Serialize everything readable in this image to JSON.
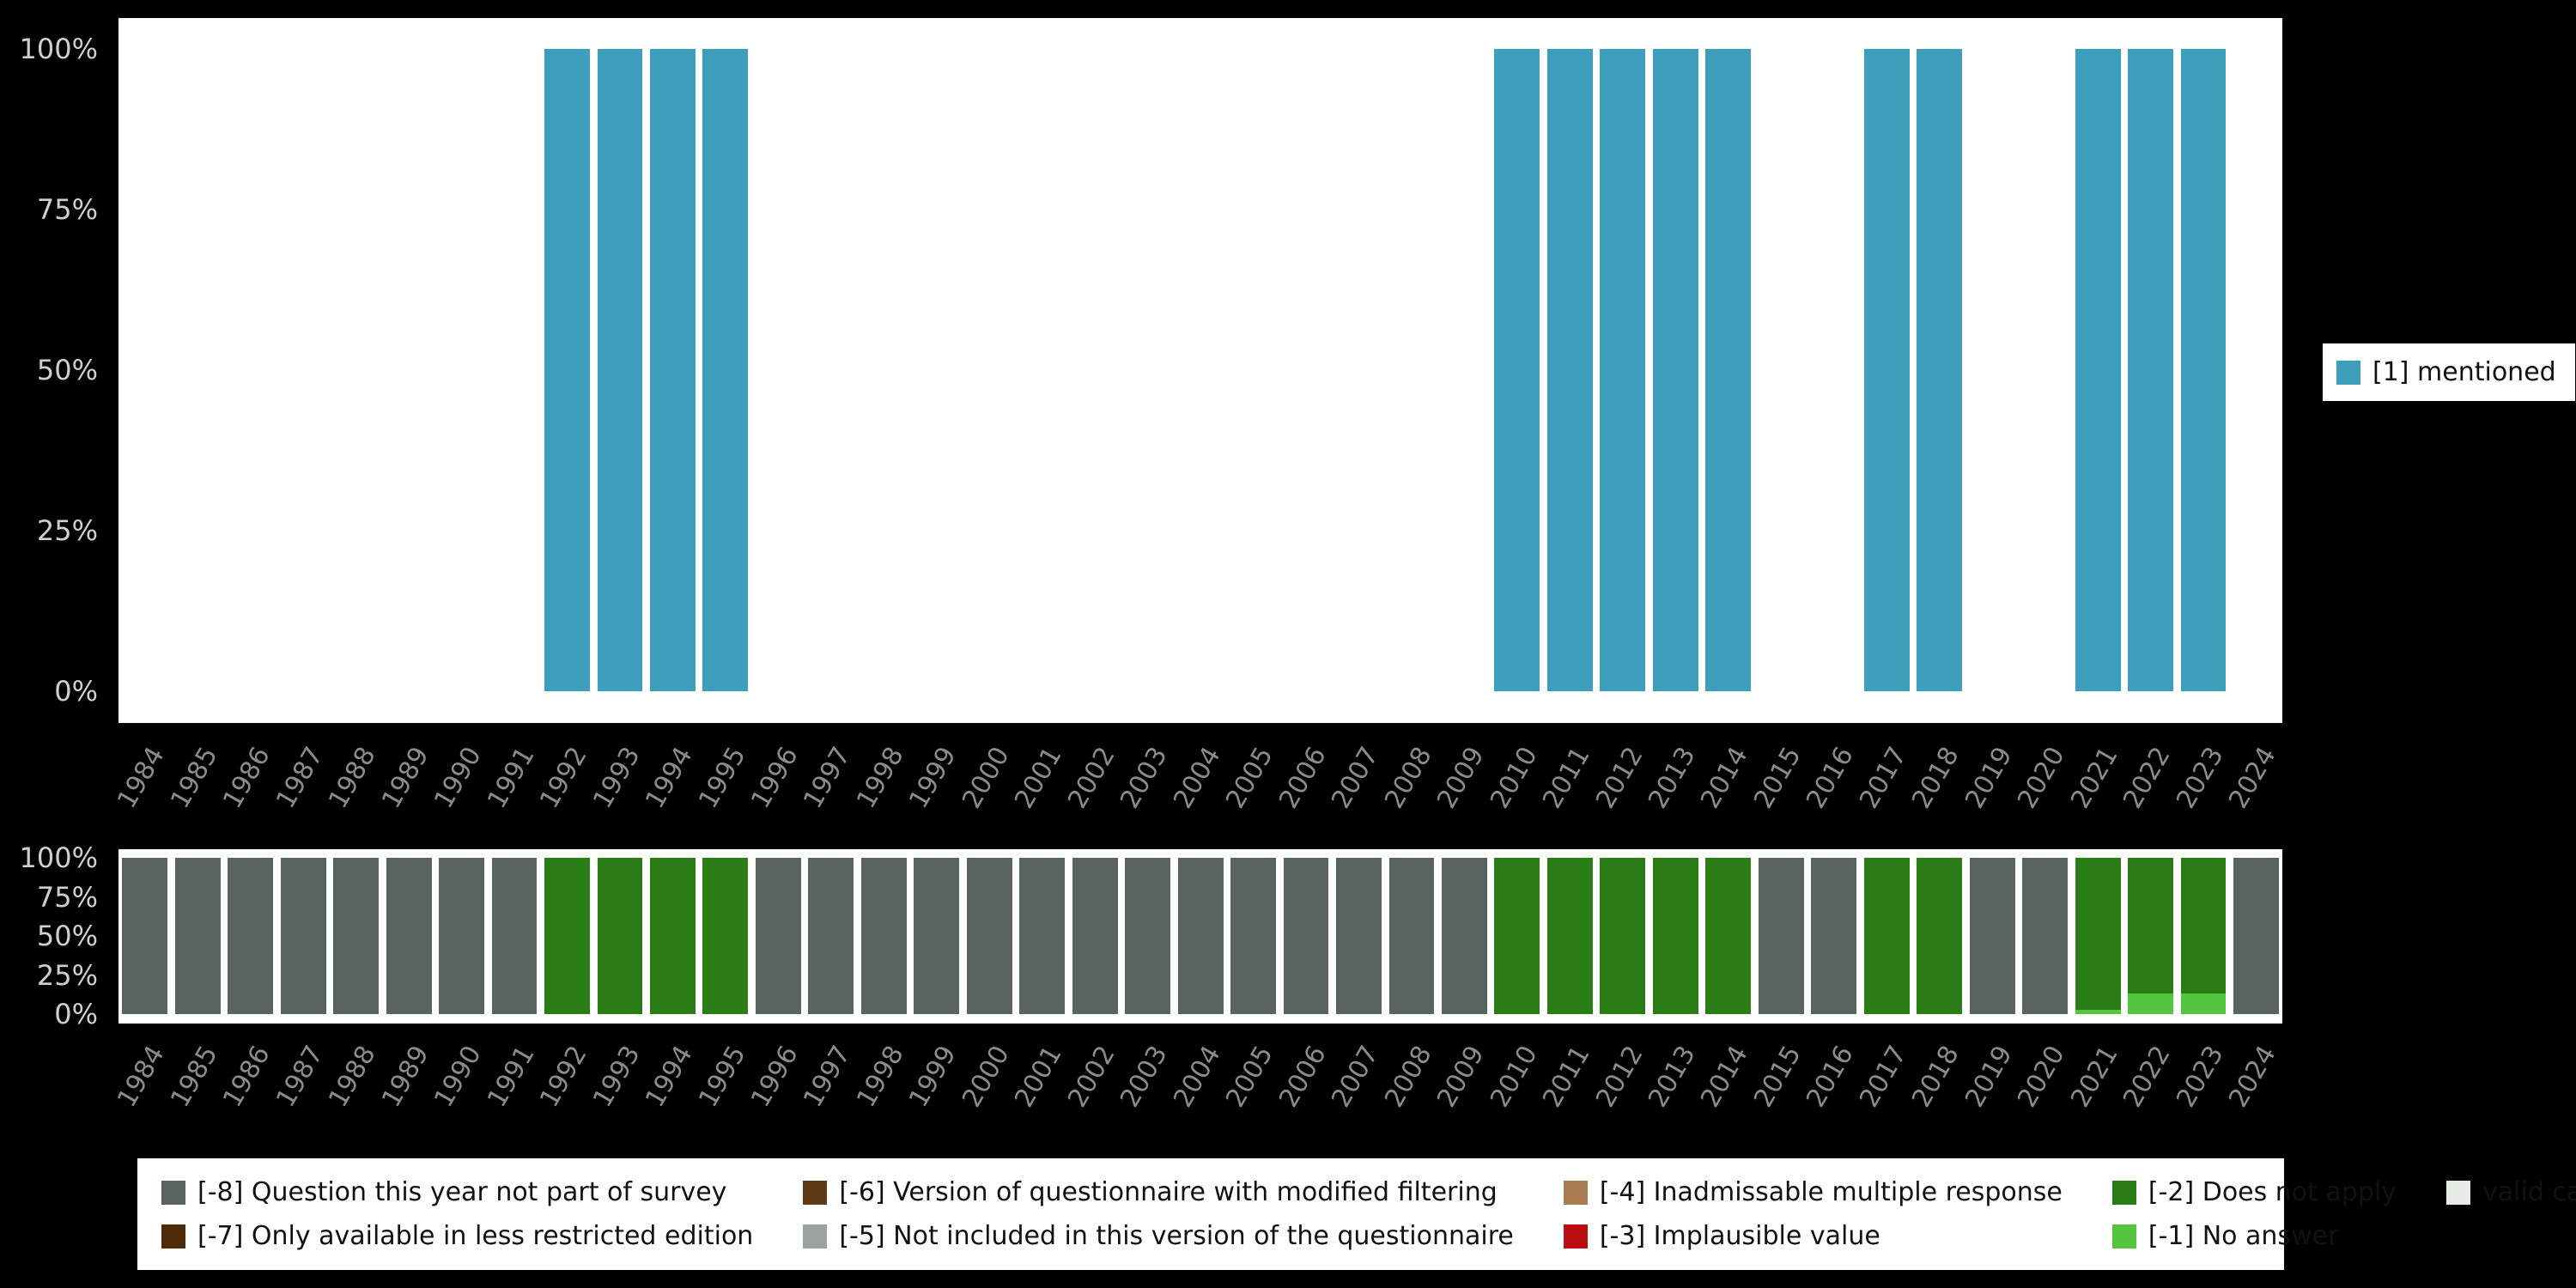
{
  "page": {
    "background": "#000000"
  },
  "legends": {
    "top": {
      "items": [
        {
          "label": "[1] mentioned",
          "color": "#3e9fbc"
        }
      ]
    },
    "bottom": {
      "items": [
        {
          "label": "[-8] Question this year not part of survey",
          "color": "#59635f"
        },
        {
          "label": "[-6] Version of questionnaire with modified filtering",
          "color": "#5d3a14"
        },
        {
          "label": "[-4] Inadmissable multiple response",
          "color": "#a87b50"
        },
        {
          "label": "[-2] Does not apply",
          "color": "#2a7d15"
        },
        {
          "label": "valid cases",
          "color": "#e6e9e6"
        },
        {
          "label": "[-7] Only available in less restricted edition",
          "color": "#4e2a09"
        },
        {
          "label": "[-5] Not included in this version of the questionnaire",
          "color": "#9aa39e"
        },
        {
          "label": "[-3] Implausible value",
          "color": "#bb0e10"
        },
        {
          "label": "[-1] No answer",
          "color": "#54c53e"
        }
      ]
    }
  },
  "chart_data": [
    {
      "type": "bar",
      "title": "",
      "xlabel": "",
      "ylabel": "",
      "ylim": [
        0,
        100
      ],
      "grid": false,
      "legend_position": "right",
      "categories": [
        "1984",
        "1985",
        "1986",
        "1987",
        "1988",
        "1989",
        "1990",
        "1991",
        "1992",
        "1993",
        "1994",
        "1995",
        "1996",
        "1997",
        "1998",
        "1999",
        "2000",
        "2001",
        "2002",
        "2003",
        "2004",
        "2005",
        "2006",
        "2007",
        "2008",
        "2009",
        "2010",
        "2011",
        "2012",
        "2013",
        "2014",
        "2015",
        "2016",
        "2017",
        "2018",
        "2019",
        "2020",
        "2021",
        "2022",
        "2023",
        "2024"
      ],
      "y_ticks": [
        {
          "label": "100%",
          "value": 100
        },
        {
          "label": "75%",
          "value": 75
        },
        {
          "label": "50%",
          "value": 50
        },
        {
          "label": "25%",
          "value": 25
        },
        {
          "label": "0%",
          "value": 0
        }
      ],
      "series": [
        {
          "name": "[1] mentioned",
          "color": "#3e9fbc",
          "values": [
            0,
            0,
            0,
            0,
            0,
            0,
            0,
            0,
            100,
            100,
            100,
            100,
            0,
            0,
            0,
            0,
            0,
            0,
            0,
            0,
            0,
            0,
            0,
            0,
            0,
            0,
            100,
            100,
            100,
            100,
            100,
            0,
            0,
            100,
            100,
            0,
            0,
            100,
            100,
            100,
            0
          ]
        }
      ]
    },
    {
      "type": "stacked-bar",
      "title": "",
      "xlabel": "",
      "ylabel": "",
      "ylim": [
        0,
        100
      ],
      "grid": false,
      "legend_position": "bottom",
      "categories": [
        "1984",
        "1985",
        "1986",
        "1987",
        "1988",
        "1989",
        "1990",
        "1991",
        "1992",
        "1993",
        "1994",
        "1995",
        "1996",
        "1997",
        "1998",
        "1999",
        "2000",
        "2001",
        "2002",
        "2003",
        "2004",
        "2005",
        "2006",
        "2007",
        "2008",
        "2009",
        "2010",
        "2011",
        "2012",
        "2013",
        "2014",
        "2015",
        "2016",
        "2017",
        "2018",
        "2019",
        "2020",
        "2021",
        "2022",
        "2023",
        "2024"
      ],
      "y_ticks": [
        {
          "label": "100%",
          "value": 100
        },
        {
          "label": "75%",
          "value": 75
        },
        {
          "label": "50%",
          "value": 50
        },
        {
          "label": "25%",
          "value": 25
        },
        {
          "label": "0%",
          "value": 0
        }
      ],
      "series": [
        {
          "name": "[-1] No answer",
          "color": "#54c53e",
          "values": [
            0,
            0,
            0,
            0,
            0,
            0,
            0,
            0,
            0,
            0,
            0,
            0,
            0,
            0,
            0,
            0,
            0,
            0,
            0,
            0,
            0,
            0,
            0,
            0,
            0,
            0,
            0,
            0,
            0,
            0,
            0,
            0,
            0,
            0,
            0,
            0,
            0,
            3,
            13,
            13,
            0
          ]
        },
        {
          "name": "[-2] Does not apply",
          "color": "#2a7d15",
          "values": [
            0,
            0,
            0,
            0,
            0,
            0,
            0,
            0,
            100,
            100,
            100,
            100,
            0,
            0,
            0,
            0,
            0,
            0,
            0,
            0,
            0,
            0,
            0,
            0,
            0,
            0,
            100,
            100,
            100,
            100,
            100,
            0,
            0,
            100,
            100,
            0,
            0,
            97,
            87,
            87,
            0
          ]
        },
        {
          "name": "[-8] Question this year not part of survey",
          "color": "#59635f",
          "values": [
            100,
            100,
            100,
            100,
            100,
            100,
            100,
            100,
            0,
            0,
            0,
            0,
            100,
            100,
            100,
            100,
            100,
            100,
            100,
            100,
            100,
            100,
            100,
            100,
            100,
            100,
            0,
            0,
            0,
            0,
            0,
            100,
            100,
            0,
            0,
            100,
            100,
            0,
            0,
            0,
            100
          ]
        }
      ]
    }
  ]
}
